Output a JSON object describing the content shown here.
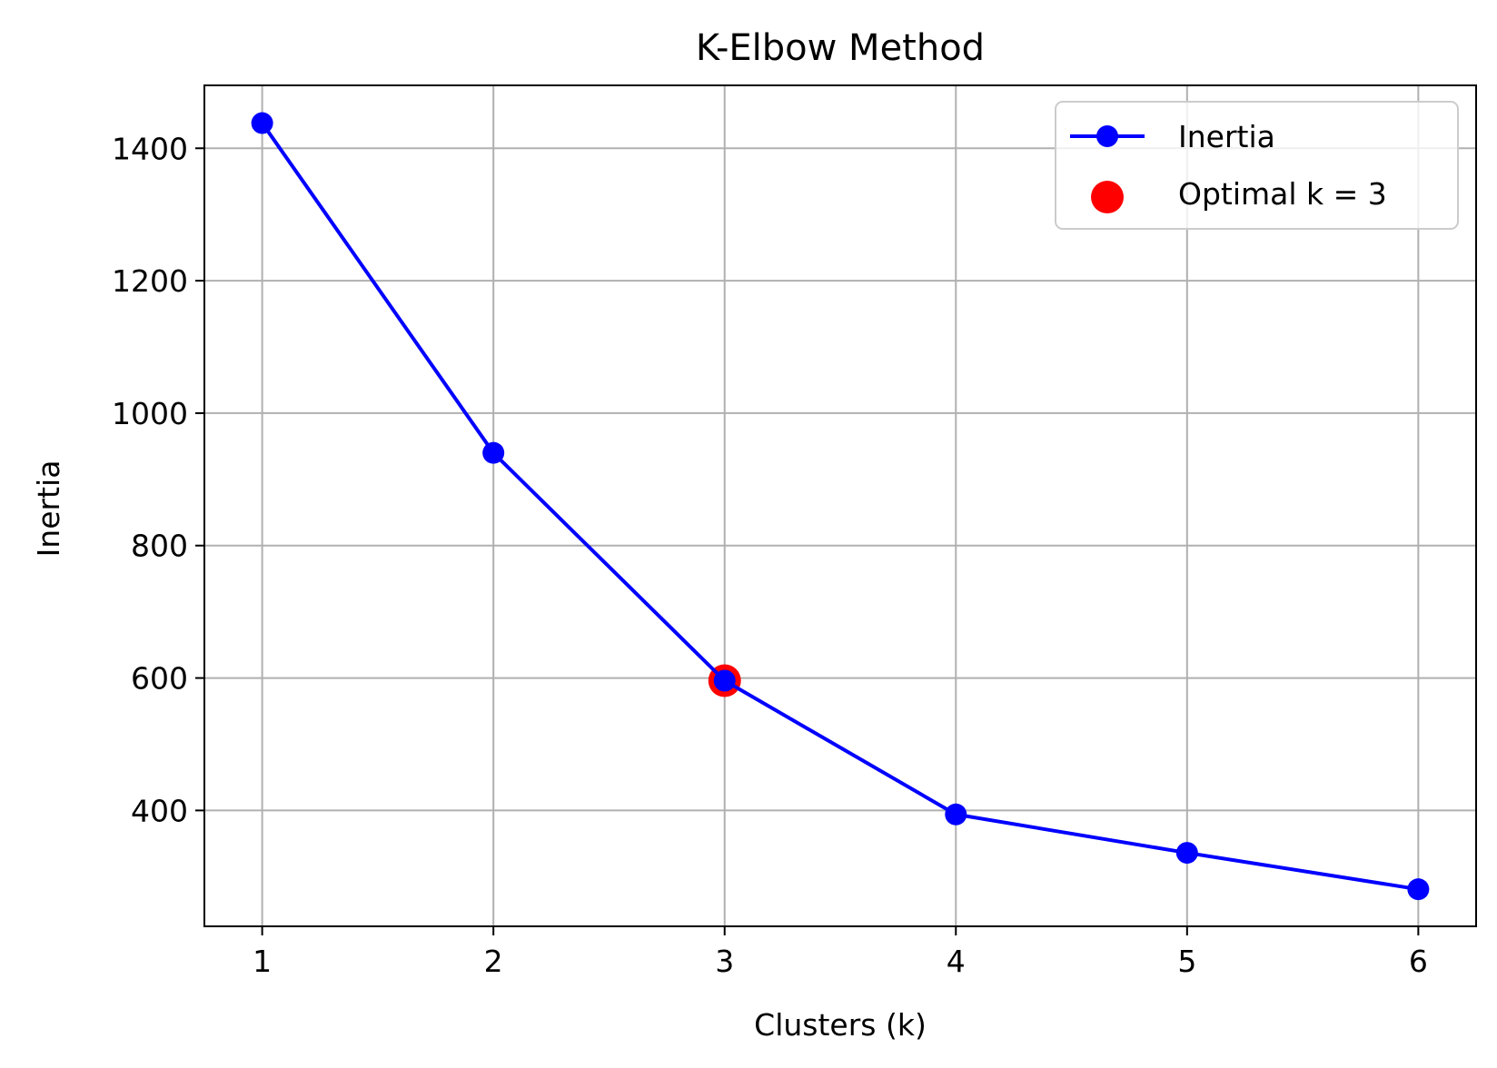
{
  "chart_data": {
    "type": "line",
    "title": "K-Elbow Method",
    "xlabel": "Clusters (k)",
    "ylabel": "Inertia",
    "x": [
      1,
      2,
      3,
      4,
      5,
      6
    ],
    "xlim": [
      0.75,
      6.25
    ],
    "ylim": [
      225,
      1495
    ],
    "xticks": [
      1,
      2,
      3,
      4,
      5,
      6
    ],
    "yticks": [
      400,
      600,
      800,
      1000,
      1200,
      1400
    ],
    "grid": true,
    "legend_position": "top-right",
    "series": [
      {
        "name": "Inertia",
        "values": [
          1438,
          940,
          596,
          394,
          336,
          281
        ],
        "color": "#0000ff",
        "marker": "circle"
      }
    ],
    "highlight": {
      "name": "Optimal k = 3",
      "x": 3,
      "y": 596,
      "color": "#ff0000"
    }
  }
}
